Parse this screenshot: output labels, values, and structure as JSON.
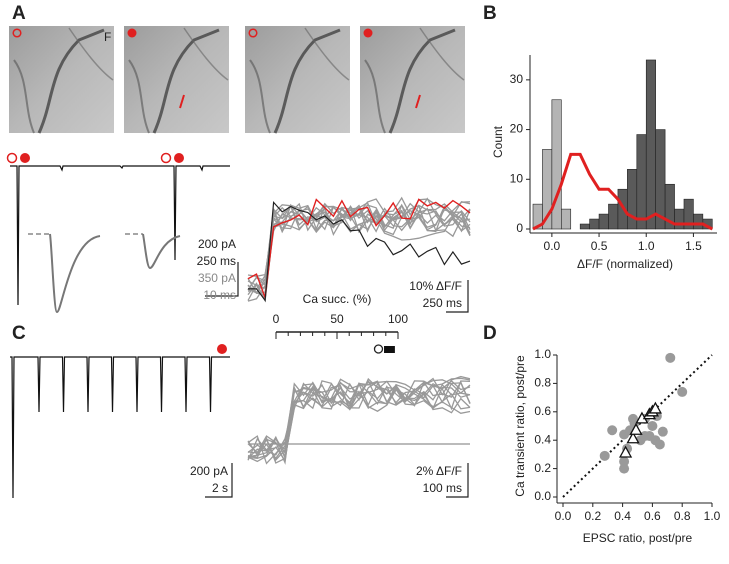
{
  "panel_labels": [
    "A",
    "B",
    "C",
    "D"
  ],
  "image_label": "F",
  "scale_bars": {
    "a_current": "200 pA",
    "a_time": "250 ms",
    "a_inset_current": "350 pA",
    "a_inset_time": "10 ms",
    "a_df": "10% ΔF/F",
    "a_df_time": "250 ms",
    "c_current": "200 pA",
    "c_time": "2 s",
    "c_df": "2% ΔF/F",
    "c_df_time": "100 ms"
  },
  "chart_data": [
    {
      "type": "histogram",
      "ylabel": "Count",
      "xlabel": "ΔF/F (normalized)",
      "xlim": [
        -0.2,
        1.75
      ],
      "ylim": [
        0,
        35
      ],
      "xticks": [
        {
          "value": 0,
          "label": "0.0"
        },
        {
          "value": 0.5,
          "label": "0.5"
        },
        {
          "value": 1,
          "label": "1.0"
        },
        {
          "value": 1.5,
          "label": "1.5"
        }
      ],
      "yticks": [
        0,
        10,
        20,
        30
      ],
      "series": [
        {
          "color": "#b4b4b4",
          "bins": [
            -0.2,
            -0.1,
            0,
            0.1,
            0.2
          ],
          "values": [
            5,
            16,
            26,
            4
          ]
        },
        {
          "color": "#5a5a5a",
          "bins": [
            0.3,
            0.4,
            0.5,
            0.6,
            0.7,
            0.8,
            0.9,
            1.0,
            1.1,
            1.2,
            1.3,
            1.4,
            1.5,
            1.6,
            1.7
          ],
          "values": [
            1,
            2,
            3,
            5,
            8,
            12,
            19,
            34,
            20,
            9,
            4,
            6,
            3,
            2
          ]
        }
      ],
      "line": {
        "color": "#e02020",
        "x": [
          -0.2,
          -0.1,
          0,
          0.1,
          0.2,
          0.3,
          0.4,
          0.5,
          0.6,
          0.7,
          0.8,
          0.9,
          1.0,
          1.1,
          1.2,
          1.3,
          1.4,
          1.5,
          1.6,
          1.7
        ],
        "values": [
          0,
          1,
          4,
          9,
          15,
          15,
          11,
          8,
          8,
          6,
          3,
          2,
          2,
          3,
          2,
          1,
          1,
          1,
          1,
          0
        ]
      }
    },
    {
      "type": "strip",
      "xlabel": "Ca succ. (%)",
      "xlim": [
        0,
        100
      ],
      "xticks": [
        0,
        50,
        100
      ],
      "minor_xticks": [
        10,
        20,
        30,
        40,
        60,
        70,
        80,
        90
      ],
      "series": [
        {
          "marker": "open-circle",
          "values": [
            84
          ]
        },
        {
          "marker": "filled-square",
          "values": [
            91,
            92,
            93,
            94,
            95
          ]
        }
      ]
    },
    {
      "type": "scatter",
      "xlabel": "EPSC ratio, post/pre",
      "ylabel": "Ca transient ratio, post/pre",
      "xlim": [
        0,
        1
      ],
      "ylim": [
        0,
        1
      ],
      "identity_line": true,
      "xticks": [
        {
          "value": 0,
          "label": "0.0"
        },
        {
          "value": 0.2,
          "label": "0.2"
        },
        {
          "value": 0.4,
          "label": "0.4"
        },
        {
          "value": 0.6,
          "label": "0.6"
        },
        {
          "value": 0.8,
          "label": "0.8"
        },
        {
          "value": 1,
          "label": "1.0"
        }
      ],
      "yticks": [
        {
          "value": 0,
          "label": "0.0"
        },
        {
          "value": 0.2,
          "label": "0.2"
        },
        {
          "value": 0.4,
          "label": "0.4"
        },
        {
          "value": 0.6,
          "label": "0.6"
        },
        {
          "value": 0.8,
          "label": "0.8"
        },
        {
          "value": 1,
          "label": "1.0"
        }
      ],
      "series": [
        {
          "marker": "circle",
          "color": "#9a9a9a",
          "x": [
            0.72,
            0.8,
            0.33,
            0.28,
            0.41,
            0.41,
            0.41,
            0.45,
            0.48,
            0.52,
            0.55,
            0.58,
            0.62,
            0.65,
            0.67,
            0.6,
            0.55,
            0.47,
            0.43,
            0.63
          ],
          "values": [
            0.98,
            0.74,
            0.47,
            0.29,
            0.2,
            0.25,
            0.44,
            0.47,
            0.52,
            0.4,
            0.43,
            0.43,
            0.4,
            0.37,
            0.46,
            0.5,
            0.55,
            0.55,
            0.34,
            0.57
          ]
        },
        {
          "marker": "triangle",
          "color": "#ffffff",
          "x": [
            0.42,
            0.47,
            0.49,
            0.53,
            0.58,
            0.6,
            0.62
          ],
          "values": [
            0.31,
            0.41,
            0.47,
            0.55,
            0.58,
            0.6,
            0.62
          ]
        }
      ]
    }
  ]
}
